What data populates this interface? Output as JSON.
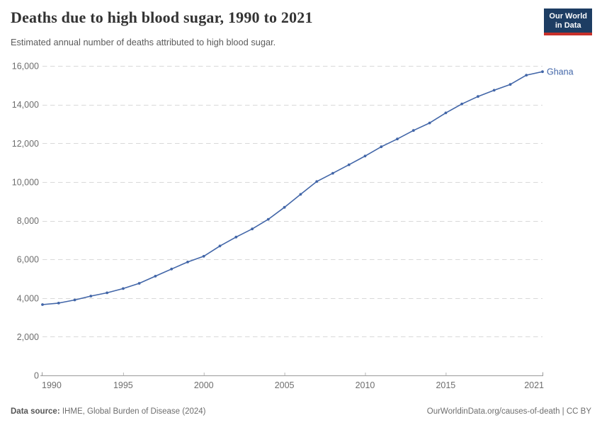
{
  "header": {
    "title": "Deaths due to high blood sugar, 1990 to 2021",
    "subtitle": "Estimated annual number of deaths attributed to high blood sugar.",
    "logo": {
      "line1": "Our World",
      "line2": "in Data"
    }
  },
  "chart_data": {
    "type": "line",
    "title": "Deaths due to high blood sugar, 1990 to 2021",
    "subtitle": "Estimated annual number of deaths attributed to high blood sugar.",
    "xlabel": "",
    "ylabel": "",
    "xlim": [
      1990,
      2021
    ],
    "ylim": [
      0,
      16000
    ],
    "grid": "horizontal-dashed",
    "legend_position": "end-of-line-label",
    "xticks": [
      {
        "v": 1990,
        "label": "1990"
      },
      {
        "v": 1995,
        "label": "1995"
      },
      {
        "v": 2000,
        "label": "2000"
      },
      {
        "v": 2005,
        "label": "2005"
      },
      {
        "v": 2010,
        "label": "2010"
      },
      {
        "v": 2015,
        "label": "2015"
      },
      {
        "v": 2021,
        "label": "2021"
      }
    ],
    "yticks": [
      {
        "v": 0,
        "label": "0"
      },
      {
        "v": 2000,
        "label": "2,000"
      },
      {
        "v": 4000,
        "label": "4,000"
      },
      {
        "v": 6000,
        "label": "6,000"
      },
      {
        "v": 8000,
        "label": "8,000"
      },
      {
        "v": 10000,
        "label": "10,000"
      },
      {
        "v": 12000,
        "label": "12,000"
      },
      {
        "v": 14000,
        "label": "14,000"
      },
      {
        "v": 16000,
        "label": "16,000"
      }
    ],
    "x": [
      1990,
      1991,
      1992,
      1993,
      1994,
      1995,
      1996,
      1997,
      1998,
      1999,
      2000,
      2001,
      2002,
      2003,
      2004,
      2005,
      2006,
      2007,
      2008,
      2009,
      2010,
      2011,
      2012,
      2013,
      2014,
      2015,
      2016,
      2017,
      2018,
      2019,
      2020,
      2021
    ],
    "series": [
      {
        "name": "Ghana",
        "color": "#4266a8",
        "values": [
          3660,
          3740,
          3900,
          4100,
          4270,
          4490,
          4760,
          5130,
          5500,
          5860,
          6160,
          6690,
          7150,
          7570,
          8070,
          8690,
          9360,
          10020,
          10450,
          10890,
          11340,
          11820,
          12220,
          12660,
          13050,
          13570,
          14030,
          14420,
          14740,
          15040,
          15520,
          15700
        ]
      }
    ]
  },
  "footer": {
    "source_label": "Data source:",
    "source_text": " IHME, Global Burden of Disease (2024)",
    "link_text": "OurWorldinData.org/causes-of-death | CC BY"
  },
  "colors": {
    "accent_line": "#4266a8",
    "logo_bg": "#1d3d63",
    "logo_red": "#c7302a",
    "grid": "#d9d9d9",
    "axis": "#9a9a9a",
    "tick_label": "#6e6e6e"
  }
}
